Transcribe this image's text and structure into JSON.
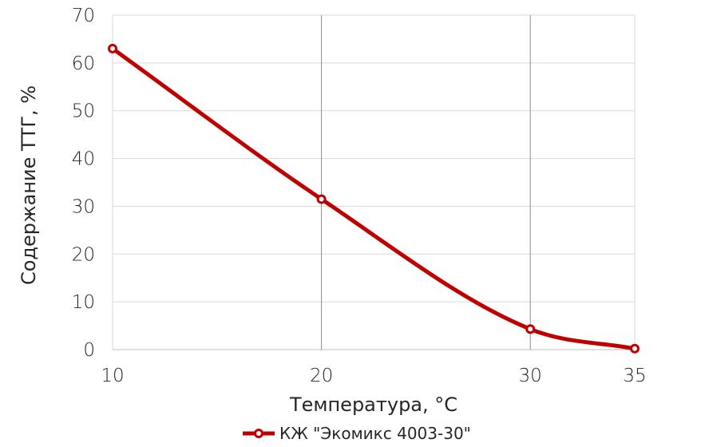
{
  "chart_data": {
    "type": "line",
    "xlabel": "Температура, °С",
    "ylabel": "Содержание ТТГ, %",
    "xlim": [
      10,
      35
    ],
    "ylim": [
      0,
      70
    ],
    "x_ticks": [
      10,
      20,
      30,
      35
    ],
    "x_tick_labels": [
      "10",
      "20",
      "30",
      "35"
    ],
    "y_ticks": [
      0,
      10,
      20,
      30,
      40,
      50,
      60,
      70
    ],
    "y_tick_labels": [
      "0",
      "10",
      "20",
      "30",
      "40",
      "50",
      "60",
      "70"
    ],
    "grid": true,
    "legend_position": "bottom",
    "series": [
      {
        "name": "КЖ \"Экомикс 4003-30\"",
        "color": "#c00000",
        "marker": "circle",
        "smooth": true,
        "x": [
          10,
          20,
          30,
          35
        ],
        "y": [
          63.0,
          31.5,
          4.3,
          0.2
        ]
      }
    ]
  }
}
